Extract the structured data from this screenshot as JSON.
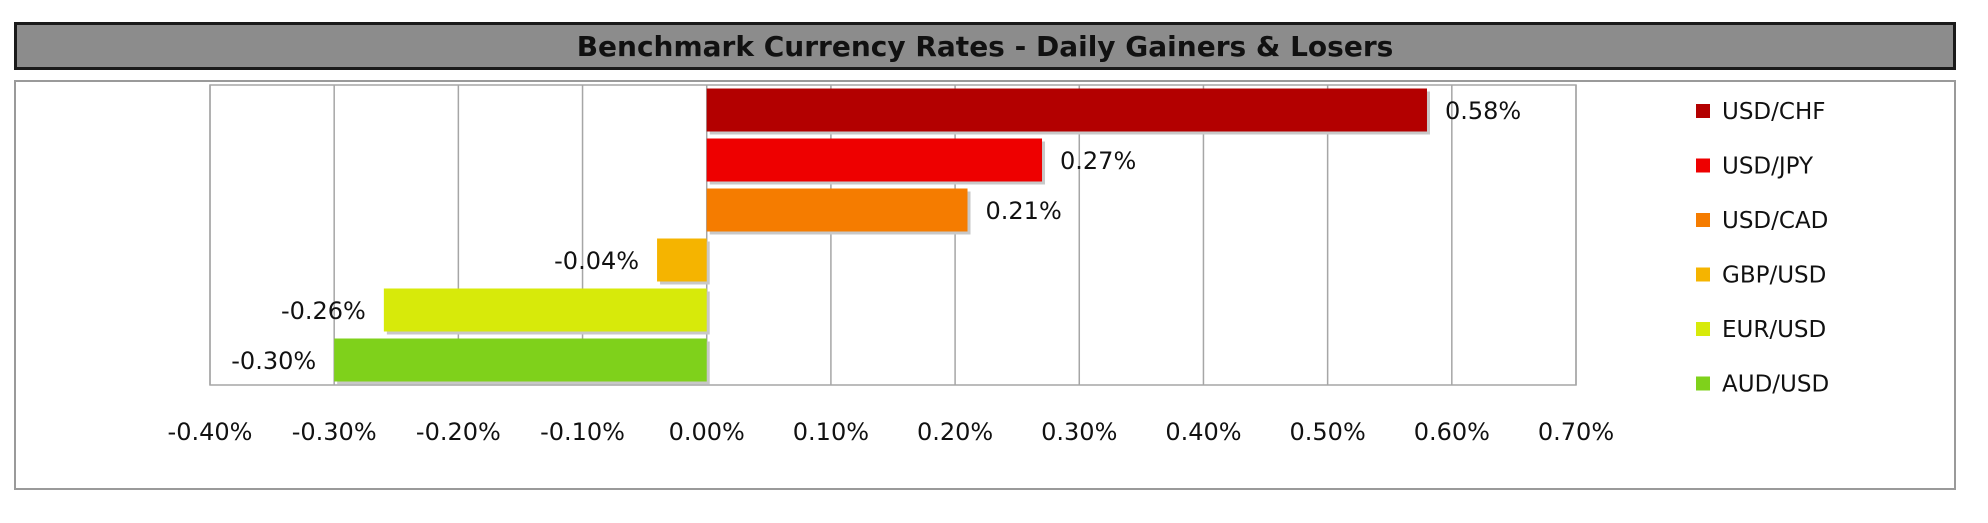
{
  "title": "Benchmark Currency Rates - Daily Gainers & Losers",
  "chart_data": {
    "type": "bar",
    "orientation": "horizontal",
    "title": "Benchmark Currency Rates - Daily Gainers & Losers",
    "categories": [
      "USD/CHF",
      "USD/JPY",
      "USD/CAD",
      "GBP/USD",
      "EUR/USD",
      "AUD/USD"
    ],
    "values": [
      0.58,
      0.27,
      0.21,
      -0.04,
      -0.26,
      -0.3
    ],
    "data_labels": [
      "0.58%",
      "0.27%",
      "0.21%",
      "-0.04%",
      "-0.26%",
      "-0.30%"
    ],
    "colors": [
      "#b30000",
      "#ee0000",
      "#f57c00",
      "#f5b400",
      "#d7ea0a",
      "#7fd11b"
    ],
    "xlim": [
      -0.4,
      0.7
    ],
    "x_ticks": [
      -0.4,
      -0.3,
      -0.2,
      -0.1,
      0.0,
      0.1,
      0.2,
      0.3,
      0.4,
      0.5,
      0.6,
      0.7
    ],
    "x_tick_labels": [
      "-0.40%",
      "-0.30%",
      "-0.20%",
      "-0.10%",
      "0.00%",
      "0.10%",
      "0.20%",
      "0.30%",
      "0.40%",
      "0.50%",
      "0.60%",
      "0.70%"
    ],
    "xlabel": "",
    "ylabel": "",
    "grid": "vertical",
    "legend": {
      "placement": "right",
      "entries": [
        "USD/CHF",
        "USD/JPY",
        "USD/CAD",
        "GBP/USD",
        "EUR/USD",
        "AUD/USD"
      ]
    }
  }
}
